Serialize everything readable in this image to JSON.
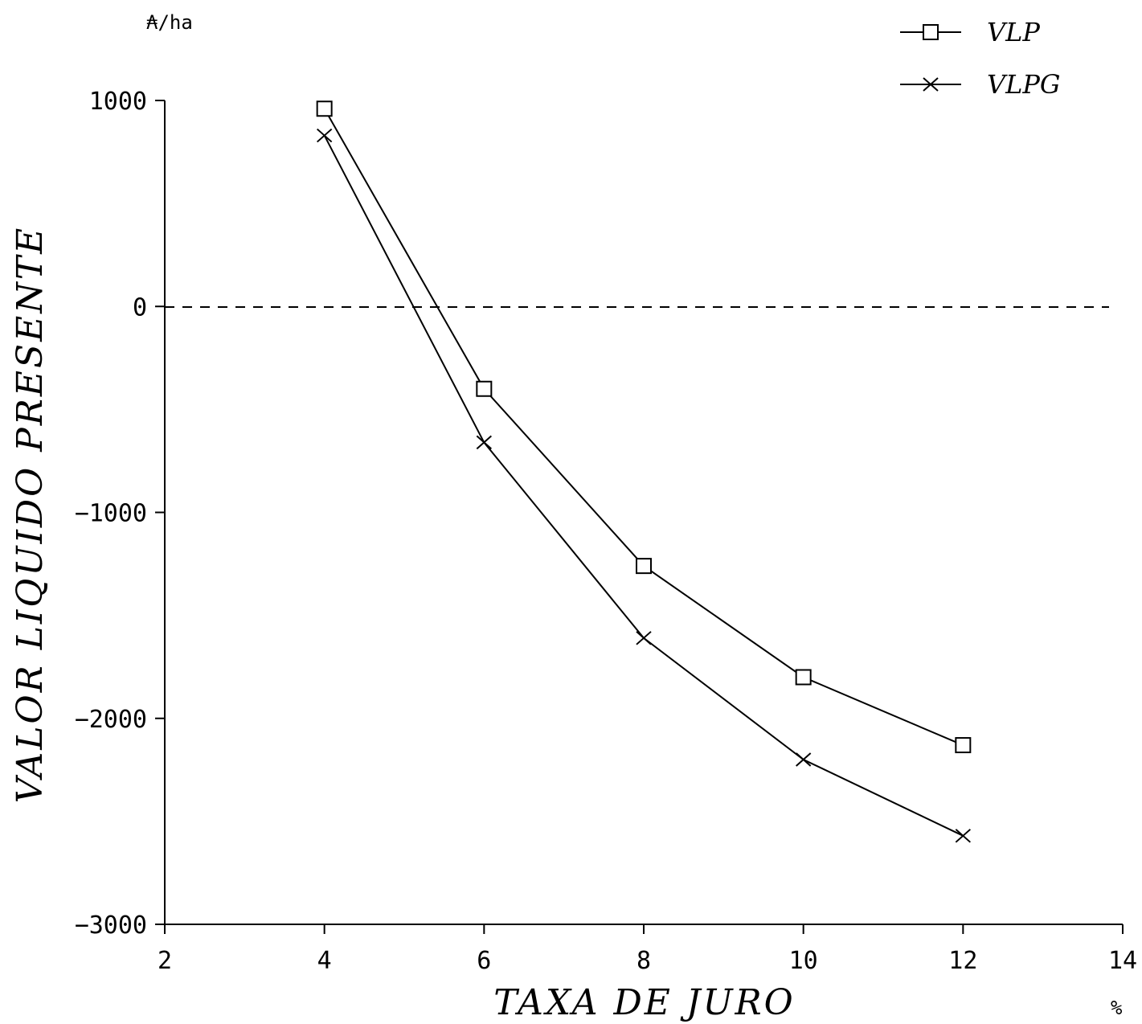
{
  "chart_data": {
    "type": "line",
    "title": "",
    "xlabel": "TAXA DE JURO",
    "x_unit": "%",
    "ylabel": "VALOR LIQUIDO PRESENTE",
    "y_unit": "₳/ha",
    "xlim": [
      2,
      14
    ],
    "ylim": [
      -3000,
      1000
    ],
    "x_ticks": [
      2,
      4,
      6,
      8,
      10,
      12,
      14
    ],
    "y_ticks": [
      1000,
      0,
      -1000,
      -2000,
      -3000
    ],
    "reference_line": {
      "y": 0,
      "style": "dashed"
    },
    "legend_position": "top-right",
    "grid": false,
    "x": [
      4,
      6,
      8,
      10,
      12
    ],
    "series": [
      {
        "name": "VLP",
        "marker": "square",
        "values": [
          960,
          -400,
          -1260,
          -1800,
          -2130
        ]
      },
      {
        "name": "VLPG",
        "marker": "x",
        "values": [
          830,
          -660,
          -1610,
          -2200,
          -2570
        ]
      }
    ]
  }
}
